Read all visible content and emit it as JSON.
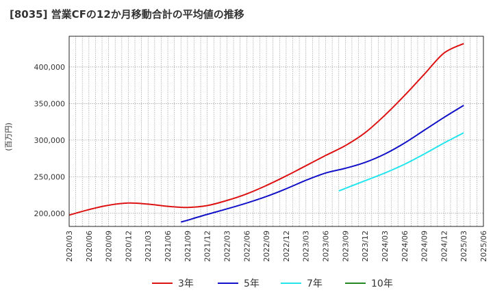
{
  "chart_data": {
    "type": "line",
    "title": "[8035]  営業CFの12か月移動合計の平均値の推移",
    "ylabel": "(百万円)",
    "xlabel": "",
    "ylim": [
      182000,
      442000
    ],
    "yticks": [
      200000,
      250000,
      300000,
      350000,
      400000
    ],
    "ytick_labels": [
      "200,000",
      "250,000",
      "300,000",
      "350,000",
      "400,000"
    ],
    "xlim": [
      "2020-03",
      "2025-06"
    ],
    "xtick_labels": [
      "2020/03",
      "2020/06",
      "2020/09",
      "2020/12",
      "2021/03",
      "2021/06",
      "2021/09",
      "2021/12",
      "2022/03",
      "2022/06",
      "2022/09",
      "2022/12",
      "2023/03",
      "2023/06",
      "2023/09",
      "2023/12",
      "2024/03",
      "2024/06",
      "2024/09",
      "2024/12",
      "2025/03",
      "2025/06"
    ],
    "grid": true,
    "legend_position": "bottom",
    "series": [
      {
        "name": "3年",
        "color": "#dd1111",
        "points": [
          [
            "2020-03",
            197500
          ],
          [
            "2020-06",
            205000
          ],
          [
            "2020-09",
            211000
          ],
          [
            "2020-12",
            214000
          ],
          [
            "2021-03",
            212500
          ],
          [
            "2021-06",
            209500
          ],
          [
            "2021-09",
            208000
          ],
          [
            "2021-12",
            210500
          ],
          [
            "2022-03",
            217500
          ],
          [
            "2022-06",
            226500
          ],
          [
            "2022-09",
            238000
          ],
          [
            "2022-12",
            251000
          ],
          [
            "2023-03",
            265000
          ],
          [
            "2023-06",
            279000
          ],
          [
            "2023-09",
            292500
          ],
          [
            "2023-12",
            310000
          ],
          [
            "2024-03",
            334000
          ],
          [
            "2024-06",
            361000
          ],
          [
            "2024-09",
            390000
          ],
          [
            "2024-12",
            419000
          ],
          [
            "2025-03",
            432000
          ]
        ]
      },
      {
        "name": "5年",
        "color": "#1010c8",
        "points": [
          [
            "2021-08",
            188000
          ],
          [
            "2021-09",
            190500
          ],
          [
            "2021-12",
            198500
          ],
          [
            "2022-03",
            206000
          ],
          [
            "2022-06",
            214000
          ],
          [
            "2022-09",
            223000
          ],
          [
            "2022-12",
            233500
          ],
          [
            "2023-03",
            245000
          ],
          [
            "2023-06",
            255000
          ],
          [
            "2023-09",
            261500
          ],
          [
            "2023-12",
            269500
          ],
          [
            "2024-03",
            281000
          ],
          [
            "2024-06",
            296000
          ],
          [
            "2024-09",
            313500
          ],
          [
            "2024-12",
            331000
          ],
          [
            "2025-03",
            347500
          ]
        ]
      },
      {
        "name": "7年",
        "color": "#22e5ee",
        "points": [
          [
            "2023-08",
            230500
          ],
          [
            "2023-09",
            234000
          ],
          [
            "2023-12",
            244500
          ],
          [
            "2024-03",
            255000
          ],
          [
            "2024-06",
            267000
          ],
          [
            "2024-09",
            281000
          ],
          [
            "2024-12",
            296000
          ],
          [
            "2025-03",
            310000
          ]
        ]
      },
      {
        "name": "10年",
        "color": "#228822",
        "points": []
      }
    ]
  }
}
